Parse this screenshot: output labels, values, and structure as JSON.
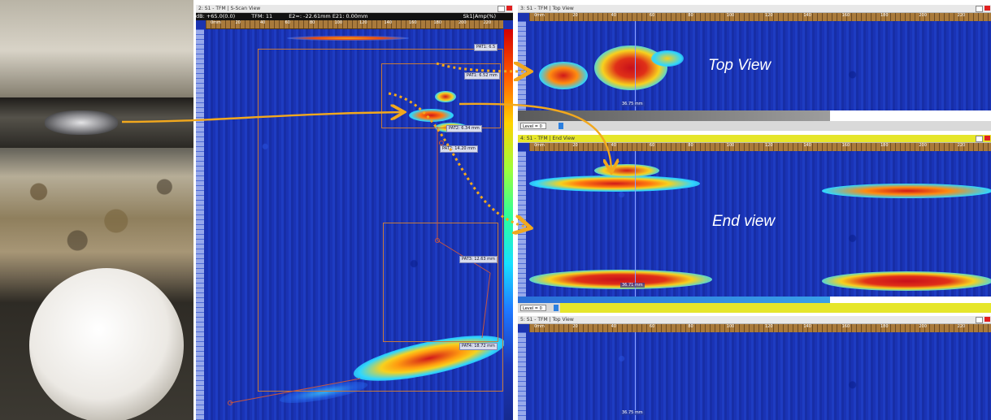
{
  "colors": {
    "accent_arrow": "#f2a81d",
    "heat_red": "#d0181a",
    "heat_yellow": "#f7d11e",
    "background_blue": "#1b33b0"
  },
  "sscan": {
    "title": "2: S1 - TFM | S-Scan View",
    "info": {
      "coord": "dB: +65.0(0.0)",
      "mode": "TFM: 11",
      "e2": "E2=: -22.61mm E21: 0.00mm",
      "amp": "Sk1|Amp(%)"
    },
    "tags": [
      "PAT1: 6.5",
      "PAT1: 6.52 mm",
      "PAT2: 6.34 mm",
      "PAT2: 14.20 mm",
      "PAT3: 12.63 mm",
      "PAT4: 18.72 mm"
    ]
  },
  "top_view": {
    "title": "3: S1 - TFM | Top View",
    "label": "Top View",
    "cursor_readout": "36.75 mm",
    "level_label": "Level = 0"
  },
  "end_view": {
    "title": "4: S1 - TFM | End View",
    "label": "End view",
    "cursor_readout": "36.71 mm",
    "level_label": "Level = 0"
  },
  "bottom_view": {
    "title": "5: S1 - TFM | Top View",
    "cursor_readout": "36.75 mm"
  },
  "ruler_ticks": [
    "0mm",
    "20",
    "40",
    "60",
    "80",
    "100",
    "120",
    "140",
    "160",
    "180",
    "200",
    "220"
  ]
}
